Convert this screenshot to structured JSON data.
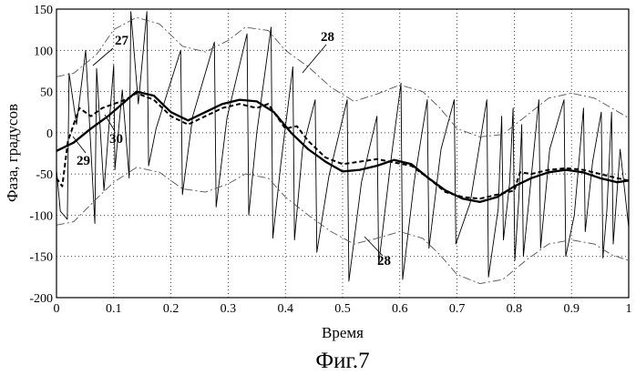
{
  "chart_data": {
    "type": "line",
    "title": "",
    "xlabel": "Время",
    "ylabel": "Фаза, градусов",
    "xlim": [
      0,
      1
    ],
    "ylim": [
      -200,
      150
    ],
    "xticks": [
      0,
      0.1,
      0.2,
      0.3,
      0.4,
      0.5,
      0.6,
      0.7,
      0.8,
      0.9,
      1
    ],
    "xtick_labels": [
      "0",
      "0.1",
      "0.2",
      "0.3",
      "0.4",
      "0.5",
      "0.6",
      "0.7",
      "0.8",
      "0.9",
      "1"
    ],
    "yticks": [
      150,
      100,
      50,
      0,
      -50,
      -100,
      -150,
      -200
    ],
    "ytick_labels": [
      "150",
      "100",
      "50",
      "0",
      "-50",
      "-100",
      "-150",
      "-200"
    ],
    "grid": true,
    "series": [
      {
        "name": "27",
        "style": "thin-solid",
        "x": [
          0,
          0.0067,
          0.019,
          0.022,
          0.035,
          0.051,
          0.067,
          0.07,
          0.083,
          0.1,
          0.102,
          0.115,
          0.127,
          0.13,
          0.143,
          0.158,
          0.161,
          0.174,
          0.217,
          0.22,
          0.238,
          0.276,
          0.279,
          0.298,
          0.333,
          0.336,
          0.35,
          0.375,
          0.378,
          0.392,
          0.413,
          0.416,
          0.43,
          0.452,
          0.455,
          0.476,
          0.508,
          0.511,
          0.533,
          0.56,
          0.563,
          0.585,
          0.602,
          0.605,
          0.625,
          0.648,
          0.651,
          0.672,
          0.695,
          0.698,
          0.723,
          0.752,
          0.755,
          0.772,
          0.778,
          0.781,
          0.792,
          0.798,
          0.801,
          0.808,
          0.813,
          0.816,
          0.826,
          0.843,
          0.846,
          0.862,
          0.887,
          0.89,
          0.905,
          0.921,
          0.924,
          0.937,
          0.952,
          0.955,
          0.962,
          0.97,
          0.973,
          0.985,
          1
        ],
        "y": [
          -45,
          -95,
          -105,
          72,
          10,
          100,
          -110,
          78,
          -70,
          82,
          -45,
          52,
          -55,
          147,
          35,
          147,
          -40,
          5,
          100,
          -75,
          20,
          110,
          -90,
          18,
          120,
          -100,
          0,
          128,
          -128,
          -38,
          80,
          -130,
          -20,
          40,
          -145,
          -53,
          40,
          -180,
          -60,
          20,
          -160,
          -30,
          60,
          -178,
          -60,
          40,
          -140,
          -20,
          40,
          -135,
          -85,
          40,
          -175,
          -92,
          20,
          -130,
          -60,
          30,
          -155,
          -80,
          10,
          -150,
          -80,
          40,
          -140,
          -20,
          40,
          -150,
          -100,
          30,
          -120,
          -35,
          25,
          -152,
          -93,
          25,
          -135,
          -20,
          -115
        ]
      },
      {
        "name": "28",
        "style": "dash-dot",
        "x": [
          0,
          0.03,
          0.07,
          0.1,
          0.14,
          0.18,
          0.22,
          0.26,
          0.3,
          0.33,
          0.37,
          0.4,
          0.44,
          0.48,
          0.52,
          0.56,
          0.6,
          0.64,
          0.67,
          0.7,
          0.74,
          0.78,
          0.82,
          0.86,
          0.9,
          0.94,
          0.97,
          1
        ],
        "y": [
          68,
          72,
          95,
          125,
          140,
          132,
          105,
          98,
          112,
          128,
          124,
          100,
          80,
          55,
          38,
          47,
          58,
          50,
          30,
          5,
          -5,
          -2,
          20,
          42,
          48,
          42,
          30,
          18
        ]
      },
      {
        "name": "28",
        "style": "dash-dot",
        "x": [
          0,
          0.03,
          0.07,
          0.1,
          0.14,
          0.18,
          0.22,
          0.26,
          0.3,
          0.33,
          0.37,
          0.4,
          0.44,
          0.48,
          0.52,
          0.56,
          0.6,
          0.64,
          0.67,
          0.7,
          0.74,
          0.78,
          0.82,
          0.86,
          0.9,
          0.94,
          0.97,
          1
        ],
        "y": [
          -112,
          -108,
          -80,
          -60,
          -42,
          -48,
          -68,
          -72,
          -62,
          -50,
          -55,
          -78,
          -100,
          -120,
          -135,
          -128,
          -120,
          -128,
          -148,
          -172,
          -183,
          -178,
          -155,
          -135,
          -130,
          -135,
          -148,
          -155
        ]
      },
      {
        "name": "29",
        "style": "thick-solid",
        "x": [
          0,
          0.03,
          0.06,
          0.09,
          0.12,
          0.14,
          0.17,
          0.2,
          0.23,
          0.26,
          0.29,
          0.32,
          0.35,
          0.38,
          0.41,
          0.44,
          0.47,
          0.5,
          0.53,
          0.56,
          0.59,
          0.62,
          0.65,
          0.68,
          0.71,
          0.74,
          0.77,
          0.8,
          0.83,
          0.86,
          0.89,
          0.92,
          0.95,
          0.98,
          1
        ],
        "y": [
          -22,
          -12,
          5,
          20,
          38,
          50,
          45,
          25,
          15,
          25,
          35,
          40,
          38,
          25,
          0,
          -20,
          -35,
          -47,
          -45,
          -40,
          -33,
          -38,
          -55,
          -70,
          -80,
          -84,
          -78,
          -65,
          -55,
          -48,
          -45,
          -48,
          -55,
          -60,
          -58
        ]
      },
      {
        "name": "30",
        "style": "thick-dashed",
        "x": [
          0,
          0.01,
          0.02,
          0.04,
          0.06,
          0.08,
          0.1,
          0.12,
          0.14,
          0.17,
          0.2,
          0.23,
          0.26,
          0.29,
          0.32,
          0.35,
          0.37,
          0.39,
          0.4,
          0.42,
          0.44,
          0.47,
          0.5,
          0.53,
          0.56,
          0.59,
          0.62,
          0.65,
          0.68,
          0.71,
          0.74,
          0.77,
          0.8,
          0.81,
          0.83,
          0.86,
          0.89,
          0.92,
          0.95,
          0.98,
          1
        ],
        "y": [
          -55,
          -65,
          -10,
          30,
          20,
          30,
          35,
          40,
          48,
          40,
          20,
          10,
          20,
          30,
          35,
          30,
          35,
          15,
          5,
          8,
          -10,
          -30,
          -38,
          -35,
          -32,
          -36,
          -40,
          -55,
          -72,
          -78,
          -80,
          -75,
          -70,
          -48,
          -50,
          -45,
          -43,
          -45,
          -50,
          -55,
          -58
        ]
      }
    ],
    "annotations": [
      "27",
      "28",
      "28",
      "29",
      "30"
    ],
    "caption": "Фиг.7"
  }
}
